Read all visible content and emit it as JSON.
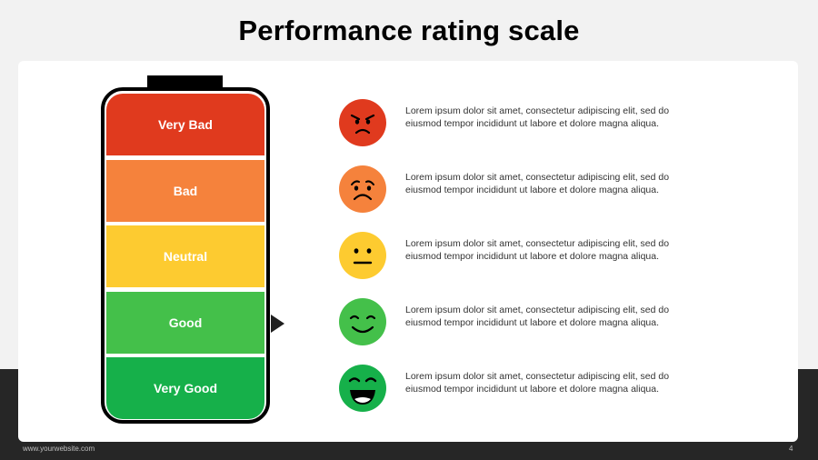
{
  "title": "Performance rating scale",
  "levels": [
    {
      "label": "Very Bad",
      "color": "#e03a1e",
      "face_color": "#e03a1e",
      "face": "angry-face-icon",
      "text": "Lorem ipsum dolor sit amet, consectetur  adipiscing elit, sed do eiusmod tempor incididunt ut labore et dolore magna aliqua."
    },
    {
      "label": "Bad",
      "color": "#f5823c",
      "face_color": "#f5823c",
      "face": "sad-face-icon",
      "text": "Lorem ipsum dolor sit amet, consectetur  adipiscing elit, sed do eiusmod tempor incididunt ut labore et dolore magna aliqua."
    },
    {
      "label": "Neutral",
      "color": "#fdcb30",
      "face_color": "#fdcb30",
      "face": "neutral-face-icon",
      "text": "Lorem ipsum dolor sit amet, consectetur  adipiscing elit, sed do eiusmod tempor incididunt ut labore et dolore magna aliqua."
    },
    {
      "label": "Good",
      "color": "#44c04a",
      "face_color": "#44c04a",
      "face": "smiling-face-icon",
      "text": "Lorem ipsum dolor sit amet, consectetur  adipiscing elit, sed do eiusmod tempor incididunt ut labore et dolore magna aliqua."
    },
    {
      "label": "Very Good",
      "color": "#16b04a",
      "face_color": "#16b04a",
      "face": "grinning-face-icon",
      "text": "Lorem ipsum dolor sit amet, consectetur  adipiscing elit, sed do eiusmod tempor incididunt ut labore et dolore magna aliqua."
    }
  ],
  "selected_level": "Good",
  "footer": {
    "url": "www.yourwebsite.com",
    "page": "4"
  }
}
